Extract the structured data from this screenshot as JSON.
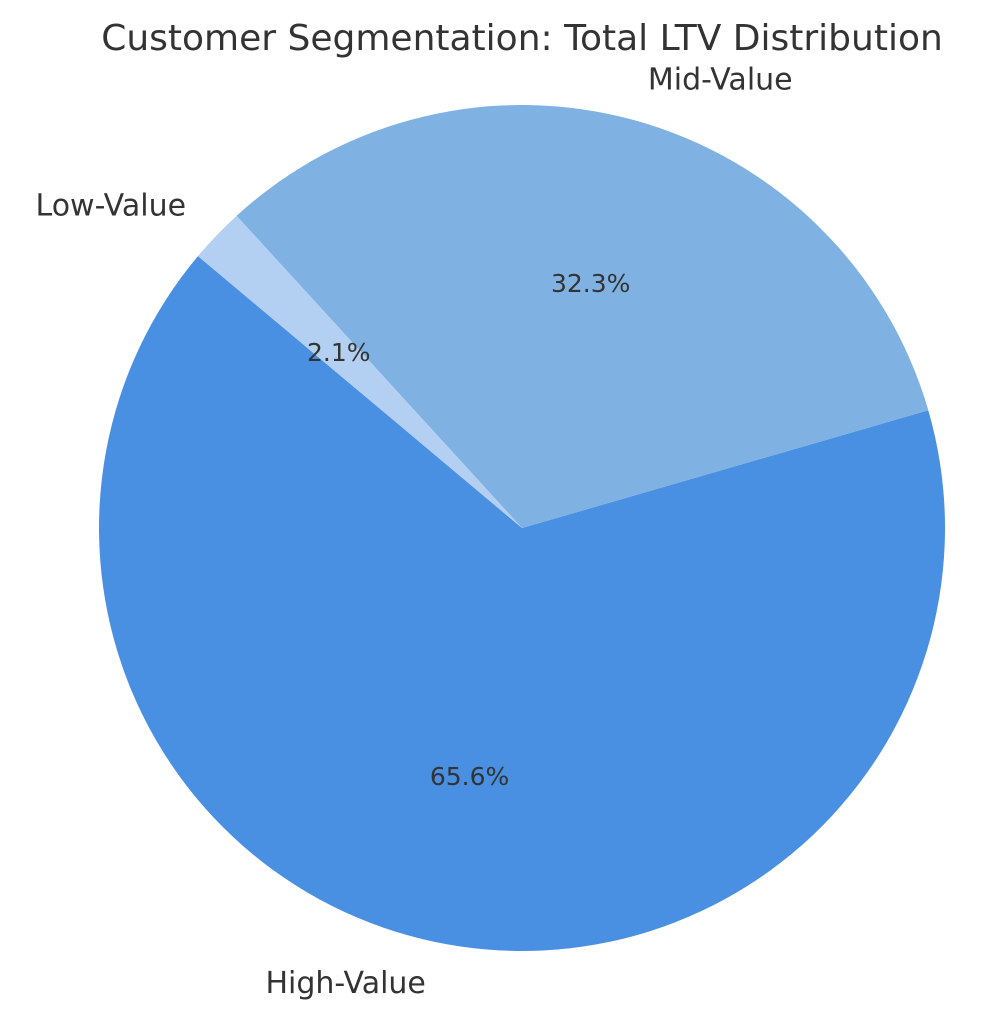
{
  "chart_data": {
    "type": "pie",
    "title": "Customer Segmentation: Total LTV Distribution",
    "slices": [
      {
        "label": "High-Value",
        "value": 65.6,
        "pct_label": "65.6%",
        "color": "#4a90e2"
      },
      {
        "label": "Mid-Value",
        "value": 32.3,
        "pct_label": "32.3%",
        "color": "#7fb1e3"
      },
      {
        "label": "Low-Value",
        "value": 2.1,
        "pct_label": "2.1%",
        "color": "#b3d0f3"
      }
    ],
    "start_angle_deg": 140,
    "direction": "counterclockwise",
    "legend": "none"
  }
}
